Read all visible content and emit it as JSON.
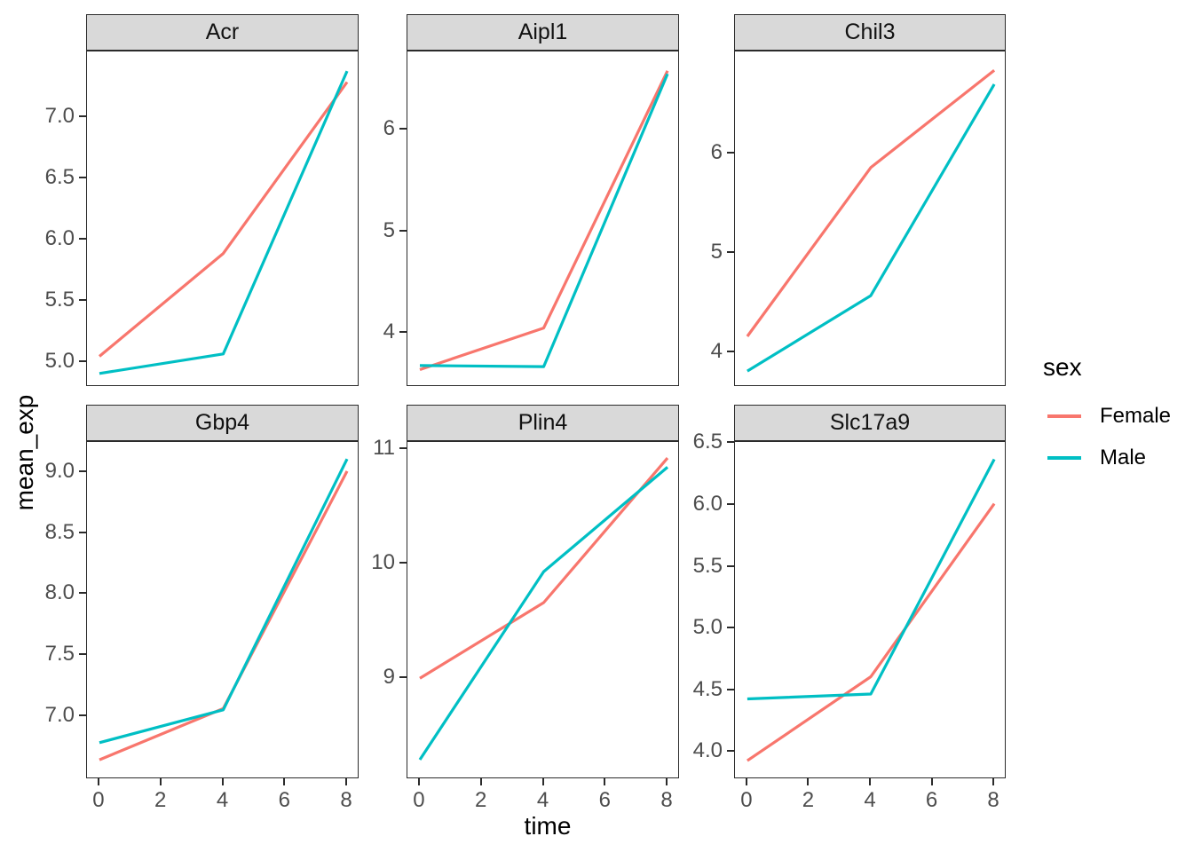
{
  "chart_data": {
    "type": "line",
    "title": "",
    "xlabel": "time",
    "ylabel": "mean_exp",
    "legend_title": "sex",
    "legend_position": "right",
    "grid": false,
    "x": [
      0,
      4,
      8
    ],
    "xticks": [
      {
        "value": 0,
        "label": "0"
      },
      {
        "value": 2,
        "label": "2"
      },
      {
        "value": 4,
        "label": "4"
      },
      {
        "value": 6,
        "label": "6"
      },
      {
        "value": 8,
        "label": "8"
      }
    ],
    "xlim": [
      -0.4,
      8.4
    ],
    "legend": [
      {
        "label": "Female",
        "color": "#F8766D"
      },
      {
        "label": "Male",
        "color": "#00BFC4"
      }
    ],
    "style": {
      "female_color": "#F8766D",
      "male_color": "#00BFC4",
      "strip_fill": "#D9D9D9",
      "border_color": "#2b2b2b",
      "tick_label_color": "#4D4D4D"
    },
    "facets": [
      {
        "title": "Acr",
        "row": 0,
        "col": 0,
        "ylim": [
          4.8,
          7.54
        ],
        "yticks": [
          {
            "value": 5.0,
            "label": "5.0"
          },
          {
            "value": 5.5,
            "label": "5.5"
          },
          {
            "value": 6.0,
            "label": "6.0"
          },
          {
            "value": 6.5,
            "label": "6.5"
          },
          {
            "value": 7.0,
            "label": "7.0"
          }
        ],
        "series": [
          {
            "name": "Female",
            "values": [
              5.05,
              5.89,
              7.29
            ]
          },
          {
            "name": "Male",
            "values": [
              4.91,
              5.07,
              7.38
            ]
          }
        ]
      },
      {
        "title": "Aipl1",
        "row": 0,
        "col": 1,
        "ylim": [
          3.47,
          6.77
        ],
        "yticks": [
          {
            "value": 4,
            "label": "4"
          },
          {
            "value": 5,
            "label": "5"
          },
          {
            "value": 6,
            "label": "6"
          }
        ],
        "series": [
          {
            "name": "Female",
            "values": [
              3.64,
              4.05,
              6.58
            ]
          },
          {
            "name": "Male",
            "values": [
              3.68,
              3.67,
              6.55
            ]
          }
        ]
      },
      {
        "title": "Chil3",
        "row": 0,
        "col": 2,
        "ylim": [
          3.65,
          7.03
        ],
        "yticks": [
          {
            "value": 4,
            "label": "4"
          },
          {
            "value": 5,
            "label": "5"
          },
          {
            "value": 6,
            "label": "6"
          }
        ],
        "series": [
          {
            "name": "Female",
            "values": [
              4.16,
              5.86,
              6.84
            ]
          },
          {
            "name": "Male",
            "values": [
              3.81,
              4.57,
              6.7
            ]
          }
        ]
      },
      {
        "title": "Gbp4",
        "row": 1,
        "col": 0,
        "ylim": [
          6.48,
          9.25
        ],
        "yticks": [
          {
            "value": 7.0,
            "label": "7.0"
          },
          {
            "value": 7.5,
            "label": "7.5"
          },
          {
            "value": 8.0,
            "label": "8.0"
          },
          {
            "value": 8.5,
            "label": "8.5"
          },
          {
            "value": 9.0,
            "label": "9.0"
          }
        ],
        "series": [
          {
            "name": "Female",
            "values": [
              6.64,
              7.06,
              9.01
            ]
          },
          {
            "name": "Male",
            "values": [
              6.78,
              7.05,
              9.11
            ]
          }
        ]
      },
      {
        "title": "Plin4",
        "row": 1,
        "col": 1,
        "ylim": [
          8.12,
          11.06
        ],
        "yticks": [
          {
            "value": 9,
            "label": "9"
          },
          {
            "value": 10,
            "label": "10"
          },
          {
            "value": 11,
            "label": "11"
          }
        ],
        "series": [
          {
            "name": "Female",
            "values": [
              9.0,
              9.66,
              10.92
            ]
          },
          {
            "name": "Male",
            "values": [
              8.29,
              9.93,
              10.84
            ]
          }
        ]
      },
      {
        "title": "Slc17a9",
        "row": 1,
        "col": 2,
        "ylim": [
          3.78,
          6.51
        ],
        "yticks": [
          {
            "value": 4.0,
            "label": "4.0"
          },
          {
            "value": 4.5,
            "label": "4.5"
          },
          {
            "value": 5.0,
            "label": "5.0"
          },
          {
            "value": 5.5,
            "label": "5.5"
          },
          {
            "value": 6.0,
            "label": "6.0"
          },
          {
            "value": 6.5,
            "label": "6.5"
          }
        ],
        "series": [
          {
            "name": "Female",
            "values": [
              3.93,
              4.61,
              6.01
            ]
          },
          {
            "name": "Male",
            "values": [
              4.43,
              4.47,
              6.37
            ]
          }
        ]
      }
    ]
  }
}
